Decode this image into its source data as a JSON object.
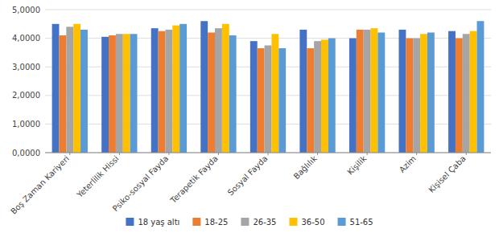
{
  "chart_data": {
    "type": "bar",
    "categories": [
      "Boş Zaman Kariyeri",
      "Yeterlilik Hissi",
      "Psiko-sosyal Fayda",
      "Terapetik Fayda",
      "Sosyal Fayda",
      "Bağlılık",
      "Kişilik",
      "Azim",
      "Kişisel Çaba"
    ],
    "series": [
      {
        "name": "18 yaş altı",
        "color": "#4472C4",
        "values": [
          4.5,
          4.05,
          4.35,
          4.6,
          3.9,
          4.3,
          4.0,
          4.3,
          4.25
        ]
      },
      {
        "name": "18-25",
        "color": "#ED7D31",
        "values": [
          4.1,
          4.1,
          4.25,
          4.2,
          3.65,
          3.65,
          4.3,
          4.0,
          4.0
        ]
      },
      {
        "name": "26-35",
        "color": "#A5A5A5",
        "values": [
          4.4,
          4.15,
          4.3,
          4.35,
          3.75,
          3.9,
          4.3,
          4.0,
          4.15
        ]
      },
      {
        "name": "36-50",
        "color": "#FFC000",
        "values": [
          4.5,
          4.15,
          4.45,
          4.5,
          4.15,
          3.95,
          4.35,
          4.15,
          4.25
        ]
      },
      {
        "name": "51-65",
        "color": "#5B9BD5",
        "values": [
          4.3,
          4.15,
          4.5,
          4.1,
          3.65,
          4.0,
          4.2,
          4.2,
          4.6
        ]
      }
    ],
    "ylim": [
      0,
      5.0
    ],
    "yticks": [
      {
        "value": 0.0,
        "label": "0,0000"
      },
      {
        "value": 1.0,
        "label": "1,0000"
      },
      {
        "value": 2.0,
        "label": "2,0000"
      },
      {
        "value": 3.0,
        "label": "3,0000"
      },
      {
        "value": 4.0,
        "label": "4,0000"
      },
      {
        "value": 5.0,
        "label": "5,0000"
      }
    ],
    "grid": true,
    "legend": "bottom"
  }
}
